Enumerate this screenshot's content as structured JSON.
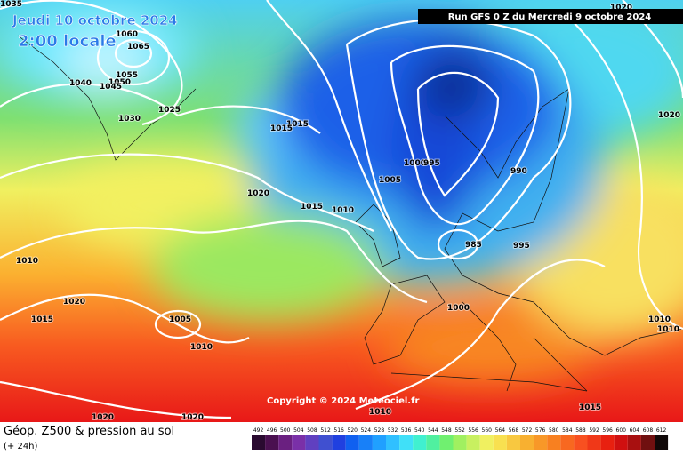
{
  "header": {
    "date": "Jeudi 10 octobre 2024",
    "time": "2:00 locale",
    "run": "Run GFS 0 Z du Mercredi 9 octobre 2024"
  },
  "copyright": "Copyright © 2024 Meteociel.fr",
  "caption": {
    "title": "Géop. Z500 & pression au sol",
    "subtitle": "(+ 24h)"
  },
  "isobar_labels": [
    "1035",
    "1060",
    "1065",
    "1055",
    "1050",
    "1040",
    "1045",
    "1030",
    "1025",
    "1020",
    "1015",
    "1015",
    "1020",
    "1015",
    "1010",
    "1005",
    "1000",
    "995",
    "990",
    "985",
    "995",
    "1020",
    "1010",
    "1020",
    "1015",
    "1005",
    "1010",
    "1000",
    "1010",
    "1010",
    "1015",
    "1020",
    "1020",
    "1010"
  ],
  "legend": [
    "492",
    "496",
    "500",
    "504",
    "508",
    "512",
    "516",
    "520",
    "524",
    "528",
    "532",
    "536",
    "540",
    "544",
    "548",
    "552",
    "556",
    "560",
    "564",
    "568",
    "572",
    "576",
    "580",
    "584",
    "588",
    "592",
    "596",
    "600",
    "604",
    "608",
    "612"
  ]
}
